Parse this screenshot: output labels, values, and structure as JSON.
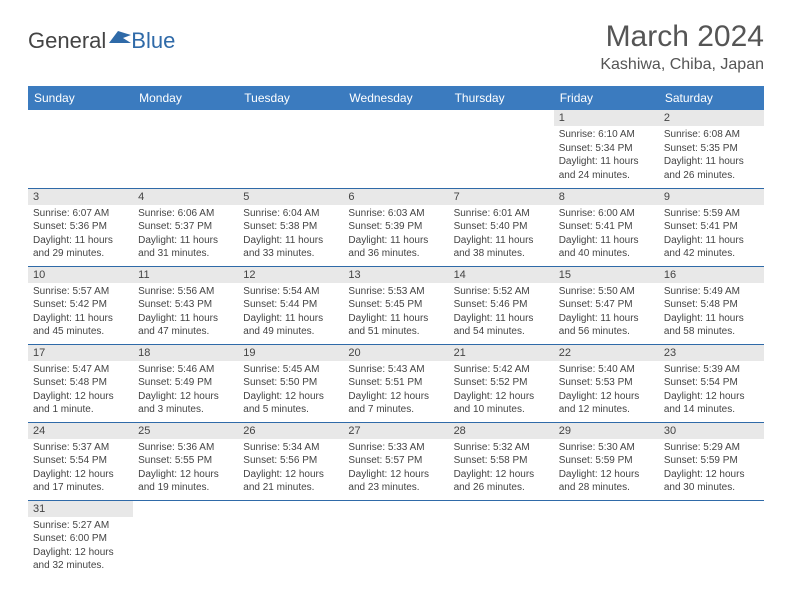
{
  "logo": {
    "general": "General",
    "blue": "Blue"
  },
  "title": "March 2024",
  "location": "Kashiwa, Chiba, Japan",
  "header_color": "#3b7bbf",
  "border_color": "#2f6aa8",
  "daynum_bg": "#e8e8e8",
  "text_color": "#444444",
  "weekdays": [
    "Sunday",
    "Monday",
    "Tuesday",
    "Wednesday",
    "Thursday",
    "Friday",
    "Saturday"
  ],
  "weeks": [
    [
      null,
      null,
      null,
      null,
      null,
      {
        "n": "1",
        "sr": "Sunrise: 6:10 AM",
        "ss": "Sunset: 5:34 PM",
        "dl": "Daylight: 11 hours and 24 minutes."
      },
      {
        "n": "2",
        "sr": "Sunrise: 6:08 AM",
        "ss": "Sunset: 5:35 PM",
        "dl": "Daylight: 11 hours and 26 minutes."
      }
    ],
    [
      {
        "n": "3",
        "sr": "Sunrise: 6:07 AM",
        "ss": "Sunset: 5:36 PM",
        "dl": "Daylight: 11 hours and 29 minutes."
      },
      {
        "n": "4",
        "sr": "Sunrise: 6:06 AM",
        "ss": "Sunset: 5:37 PM",
        "dl": "Daylight: 11 hours and 31 minutes."
      },
      {
        "n": "5",
        "sr": "Sunrise: 6:04 AM",
        "ss": "Sunset: 5:38 PM",
        "dl": "Daylight: 11 hours and 33 minutes."
      },
      {
        "n": "6",
        "sr": "Sunrise: 6:03 AM",
        "ss": "Sunset: 5:39 PM",
        "dl": "Daylight: 11 hours and 36 minutes."
      },
      {
        "n": "7",
        "sr": "Sunrise: 6:01 AM",
        "ss": "Sunset: 5:40 PM",
        "dl": "Daylight: 11 hours and 38 minutes."
      },
      {
        "n": "8",
        "sr": "Sunrise: 6:00 AM",
        "ss": "Sunset: 5:41 PM",
        "dl": "Daylight: 11 hours and 40 minutes."
      },
      {
        "n": "9",
        "sr": "Sunrise: 5:59 AM",
        "ss": "Sunset: 5:41 PM",
        "dl": "Daylight: 11 hours and 42 minutes."
      }
    ],
    [
      {
        "n": "10",
        "sr": "Sunrise: 5:57 AM",
        "ss": "Sunset: 5:42 PM",
        "dl": "Daylight: 11 hours and 45 minutes."
      },
      {
        "n": "11",
        "sr": "Sunrise: 5:56 AM",
        "ss": "Sunset: 5:43 PM",
        "dl": "Daylight: 11 hours and 47 minutes."
      },
      {
        "n": "12",
        "sr": "Sunrise: 5:54 AM",
        "ss": "Sunset: 5:44 PM",
        "dl": "Daylight: 11 hours and 49 minutes."
      },
      {
        "n": "13",
        "sr": "Sunrise: 5:53 AM",
        "ss": "Sunset: 5:45 PM",
        "dl": "Daylight: 11 hours and 51 minutes."
      },
      {
        "n": "14",
        "sr": "Sunrise: 5:52 AM",
        "ss": "Sunset: 5:46 PM",
        "dl": "Daylight: 11 hours and 54 minutes."
      },
      {
        "n": "15",
        "sr": "Sunrise: 5:50 AM",
        "ss": "Sunset: 5:47 PM",
        "dl": "Daylight: 11 hours and 56 minutes."
      },
      {
        "n": "16",
        "sr": "Sunrise: 5:49 AM",
        "ss": "Sunset: 5:48 PM",
        "dl": "Daylight: 11 hours and 58 minutes."
      }
    ],
    [
      {
        "n": "17",
        "sr": "Sunrise: 5:47 AM",
        "ss": "Sunset: 5:48 PM",
        "dl": "Daylight: 12 hours and 1 minute."
      },
      {
        "n": "18",
        "sr": "Sunrise: 5:46 AM",
        "ss": "Sunset: 5:49 PM",
        "dl": "Daylight: 12 hours and 3 minutes."
      },
      {
        "n": "19",
        "sr": "Sunrise: 5:45 AM",
        "ss": "Sunset: 5:50 PM",
        "dl": "Daylight: 12 hours and 5 minutes."
      },
      {
        "n": "20",
        "sr": "Sunrise: 5:43 AM",
        "ss": "Sunset: 5:51 PM",
        "dl": "Daylight: 12 hours and 7 minutes."
      },
      {
        "n": "21",
        "sr": "Sunrise: 5:42 AM",
        "ss": "Sunset: 5:52 PM",
        "dl": "Daylight: 12 hours and 10 minutes."
      },
      {
        "n": "22",
        "sr": "Sunrise: 5:40 AM",
        "ss": "Sunset: 5:53 PM",
        "dl": "Daylight: 12 hours and 12 minutes."
      },
      {
        "n": "23",
        "sr": "Sunrise: 5:39 AM",
        "ss": "Sunset: 5:54 PM",
        "dl": "Daylight: 12 hours and 14 minutes."
      }
    ],
    [
      {
        "n": "24",
        "sr": "Sunrise: 5:37 AM",
        "ss": "Sunset: 5:54 PM",
        "dl": "Daylight: 12 hours and 17 minutes."
      },
      {
        "n": "25",
        "sr": "Sunrise: 5:36 AM",
        "ss": "Sunset: 5:55 PM",
        "dl": "Daylight: 12 hours and 19 minutes."
      },
      {
        "n": "26",
        "sr": "Sunrise: 5:34 AM",
        "ss": "Sunset: 5:56 PM",
        "dl": "Daylight: 12 hours and 21 minutes."
      },
      {
        "n": "27",
        "sr": "Sunrise: 5:33 AM",
        "ss": "Sunset: 5:57 PM",
        "dl": "Daylight: 12 hours and 23 minutes."
      },
      {
        "n": "28",
        "sr": "Sunrise: 5:32 AM",
        "ss": "Sunset: 5:58 PM",
        "dl": "Daylight: 12 hours and 26 minutes."
      },
      {
        "n": "29",
        "sr": "Sunrise: 5:30 AM",
        "ss": "Sunset: 5:59 PM",
        "dl": "Daylight: 12 hours and 28 minutes."
      },
      {
        "n": "30",
        "sr": "Sunrise: 5:29 AM",
        "ss": "Sunset: 5:59 PM",
        "dl": "Daylight: 12 hours and 30 minutes."
      }
    ],
    [
      {
        "n": "31",
        "sr": "Sunrise: 5:27 AM",
        "ss": "Sunset: 6:00 PM",
        "dl": "Daylight: 12 hours and 32 minutes."
      },
      null,
      null,
      null,
      null,
      null,
      null
    ]
  ]
}
